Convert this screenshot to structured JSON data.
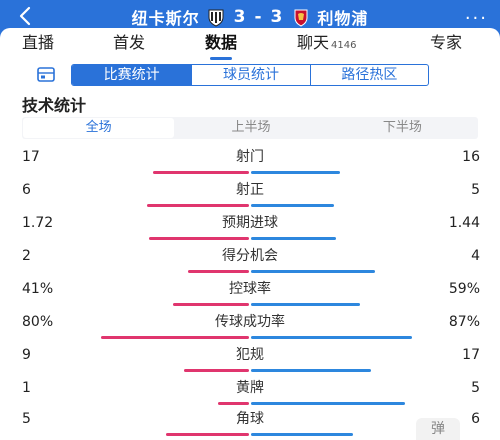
{
  "header": {
    "home_team": "纽卡斯尔",
    "home_score": "3",
    "separator": "-",
    "away_score": "3",
    "away_team": "利物浦",
    "more_label": "···"
  },
  "main_tabs": [
    {
      "label": "直播",
      "count": ""
    },
    {
      "label": "首发",
      "count": ""
    },
    {
      "label": "数据",
      "count": ""
    },
    {
      "label": "聊天",
      "count": "4146"
    },
    {
      "label": "专家",
      "count": ""
    }
  ],
  "sub_tabs": [
    "比赛统计",
    "球员统计",
    "路径热区"
  ],
  "section_title": "技术统计",
  "period_tabs": [
    "全场",
    "上半场",
    "下半场"
  ],
  "stats": [
    {
      "label": "射门",
      "left": "17",
      "right": "16",
      "left_ratio": 0.52,
      "right_ratio": 0.48
    },
    {
      "label": "射正",
      "left": "6",
      "right": "5",
      "left_ratio": 0.55,
      "right_ratio": 0.45
    },
    {
      "label": "预期进球",
      "left": "1.72",
      "right": "1.44",
      "left_ratio": 0.54,
      "right_ratio": 0.46
    },
    {
      "label": "得分机会",
      "left": "2",
      "right": "4",
      "left_ratio": 0.33,
      "right_ratio": 0.67
    },
    {
      "label": "控球率",
      "left": "41%",
      "right": "59%",
      "left_ratio": 0.41,
      "right_ratio": 0.59
    },
    {
      "label": "传球成功率",
      "left": "80%",
      "right": "87%",
      "left_ratio": 0.8,
      "right_ratio": 0.87
    },
    {
      "label": "犯规",
      "left": "9",
      "right": "17",
      "left_ratio": 0.35,
      "right_ratio": 0.65
    },
    {
      "label": "黄牌",
      "left": "1",
      "right": "5",
      "left_ratio": 0.17,
      "right_ratio": 0.83
    },
    {
      "label": "角球",
      "left": "5",
      "right": "6",
      "left_ratio": 0.45,
      "right_ratio": 0.55
    }
  ],
  "float_button": "弹",
  "colors": {
    "accent": "#2a72d9",
    "home_bar": "#e0356e",
    "away_bar": "#2d87de"
  }
}
